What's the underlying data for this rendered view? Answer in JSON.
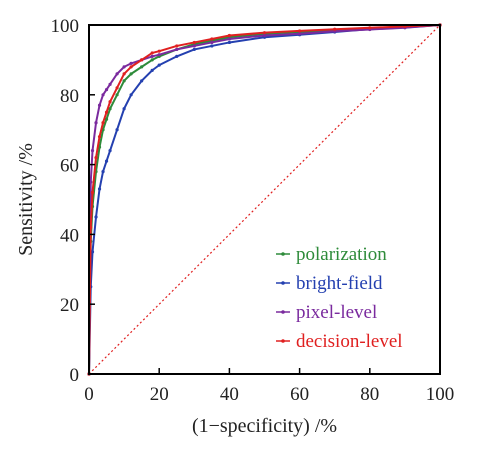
{
  "chart_data": {
    "type": "line",
    "xlabel": "(1−specificity) /%",
    "ylabel": "Sensitivity /%",
    "xlim": [
      0,
      100
    ],
    "ylim": [
      0,
      100
    ],
    "xticks": [
      "0",
      "20",
      "40",
      "60",
      "80",
      "100"
    ],
    "yticks": [
      "0",
      "20",
      "40",
      "60",
      "80",
      "100"
    ],
    "grid": false,
    "legend_position": "bottom-right",
    "series": [
      {
        "name": "polarization",
        "color": "#2e8b3a",
        "x": [
          0,
          0.5,
          1,
          2,
          3,
          4,
          5,
          6,
          8,
          10,
          12,
          15,
          18,
          20,
          25,
          30,
          35,
          40,
          50,
          60,
          70,
          80,
          90,
          100
        ],
        "y": [
          0,
          38,
          48,
          58,
          65,
          70,
          73,
          76,
          80,
          84,
          86,
          88,
          90,
          91,
          93,
          94.5,
          95.5,
          96.5,
          97.5,
          98,
          98.5,
          99,
          99.5,
          100
        ]
      },
      {
        "name": "bright-field",
        "color": "#2440b0",
        "x": [
          0,
          0.5,
          1,
          2,
          3,
          4,
          5,
          6,
          8,
          10,
          12,
          15,
          18,
          20,
          25,
          30,
          35,
          40,
          50,
          60,
          70,
          80,
          90,
          100
        ],
        "y": [
          0,
          25,
          35,
          45,
          53,
          58,
          61,
          64,
          70,
          76,
          80,
          84,
          87,
          88.5,
          91,
          93,
          94,
          95,
          96.5,
          97.2,
          98,
          98.8,
          99.3,
          100
        ]
      },
      {
        "name": "pixel-level",
        "color": "#7a2a9e",
        "x": [
          0,
          0.5,
          1,
          2,
          3,
          4,
          5,
          6,
          8,
          10,
          12,
          15,
          18,
          20,
          25,
          30,
          35,
          40,
          50,
          60,
          70,
          80,
          90,
          100
        ],
        "y": [
          0,
          55,
          64,
          72,
          77,
          80,
          81.5,
          83,
          86,
          88,
          89,
          90,
          91,
          91.5,
          93,
          94,
          95,
          96,
          97,
          97.5,
          98.2,
          98.7,
          99.2,
          100
        ]
      },
      {
        "name": "decision-level",
        "color": "#e02020",
        "x": [
          0,
          0.5,
          1,
          2,
          3,
          4,
          5,
          6,
          8,
          10,
          12,
          15,
          18,
          20,
          25,
          30,
          35,
          40,
          50,
          60,
          70,
          80,
          90,
          100
        ],
        "y": [
          0,
          42,
          52,
          62,
          68,
          72,
          75,
          78,
          82,
          86,
          88,
          90,
          92,
          92.5,
          94,
          95,
          96,
          97,
          97.8,
          98.3,
          98.8,
          99.2,
          99.6,
          100
        ]
      }
    ],
    "reference_line": {
      "color": "#e02020",
      "style": "dotted",
      "x": [
        0,
        100
      ],
      "y": [
        0,
        100
      ]
    }
  }
}
